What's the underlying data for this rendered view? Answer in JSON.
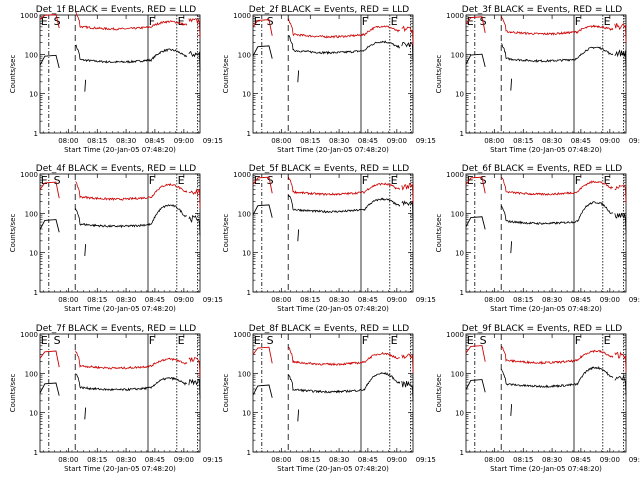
{
  "figure": {
    "xlabel": "Start Time (20-Jan-05 07:48:20)"
  },
  "chart_data": [
    {
      "type": "line",
      "title": "Det_1f BLACK = Events, RED = LLD",
      "ylabel": "Counts/sec",
      "yscale": "log",
      "ylim": [
        1,
        1000
      ],
      "yticks": [
        1,
        10,
        100,
        1000
      ],
      "xticks": [
        "08:00",
        "08:15",
        "08:30",
        "08:45",
        "09:00",
        "09:15"
      ],
      "markers": [
        "E",
        "S",
        "F",
        "E"
      ],
      "series": [
        {
          "name": "Events",
          "color": "#000000",
          "level": 75,
          "peak": 130
        },
        {
          "name": "LLD",
          "color": "#cc0000",
          "level": 520,
          "peak": 680
        }
      ]
    },
    {
      "type": "line",
      "title": "Det_2f BLACK = Events, RED = LLD",
      "ylabel": "Counts/sec",
      "yscale": "log",
      "ylim": [
        1,
        1000
      ],
      "yticks": [
        1,
        10,
        100,
        1000
      ],
      "xticks": [
        "08:00",
        "08:15",
        "08:30",
        "08:45",
        "09:00",
        "09:15"
      ],
      "markers": [
        "E",
        "S",
        "F",
        "E"
      ],
      "series": [
        {
          "name": "Events",
          "color": "#000000",
          "level": 130,
          "peak": 210
        },
        {
          "name": "LLD",
          "color": "#cc0000",
          "level": 330,
          "peak": 520
        }
      ]
    },
    {
      "type": "line",
      "title": "Det_3f BLACK = Events, RED = LLD",
      "ylabel": "Counts/sec",
      "yscale": "log",
      "ylim": [
        1,
        1000
      ],
      "yticks": [
        1,
        10,
        100,
        1000
      ],
      "xticks": [
        "08:00",
        "08:15",
        "08:30",
        "08:45",
        "09:00",
        "09:15"
      ],
      "markers": [
        "E",
        "S",
        "F",
        "E"
      ],
      "series": [
        {
          "name": "Events",
          "color": "#000000",
          "level": 80,
          "peak": 150
        },
        {
          "name": "LLD",
          "color": "#cc0000",
          "level": 390,
          "peak": 520
        }
      ]
    },
    {
      "type": "line",
      "title": "Det_4f BLACK = Events, RED = LLD",
      "ylabel": "Counts/sec",
      "yscale": "log",
      "ylim": [
        1,
        1000
      ],
      "yticks": [
        1,
        10,
        100,
        1000
      ],
      "xticks": [
        "08:00",
        "08:15",
        "08:30",
        "08:45",
        "09:00",
        "09:15"
      ],
      "markers": [
        "E",
        "S",
        "F",
        "E"
      ],
      "series": [
        {
          "name": "Events",
          "color": "#000000",
          "level": 55,
          "peak": 160
        },
        {
          "name": "LLD",
          "color": "#cc0000",
          "level": 270,
          "peak": 540
        }
      ]
    },
    {
      "type": "line",
      "title": "Det_5f BLACK = Events, RED = LLD",
      "ylabel": "Counts/sec",
      "yscale": "log",
      "ylim": [
        1,
        1000
      ],
      "yticks": [
        1,
        10,
        100,
        1000
      ],
      "xticks": [
        "08:00",
        "08:15",
        "08:30",
        "08:45",
        "09:00",
        "09:15"
      ],
      "markers": [
        "E",
        "S",
        "F",
        "E"
      ],
      "series": [
        {
          "name": "Events",
          "color": "#000000",
          "level": 130,
          "peak": 230
        },
        {
          "name": "LLD",
          "color": "#cc0000",
          "level": 360,
          "peak": 560
        }
      ]
    },
    {
      "type": "line",
      "title": "Det_6f BLACK = Events, RED = LLD",
      "ylabel": "Counts/sec",
      "yscale": "log",
      "ylim": [
        1,
        1000
      ],
      "yticks": [
        1,
        10,
        100,
        1000
      ],
      "xticks": [
        "08:00",
        "08:15",
        "08:30",
        "08:45",
        "09:00",
        "09:15"
      ],
      "markers": [
        "E",
        "S",
        "F",
        "E"
      ],
      "series": [
        {
          "name": "Events",
          "color": "#000000",
          "level": 65,
          "peak": 190
        },
        {
          "name": "LLD",
          "color": "#cc0000",
          "level": 360,
          "peak": 640
        }
      ]
    },
    {
      "type": "line",
      "title": "Det_7f BLACK = Events, RED = LLD",
      "ylabel": "Counts/sec",
      "yscale": "log",
      "ylim": [
        1,
        1000
      ],
      "yticks": [
        1,
        10,
        100,
        1000
      ],
      "xticks": [
        "08:00",
        "08:15",
        "08:30",
        "08:45",
        "09:00",
        "09:15"
      ],
      "markers": [
        "E",
        "S",
        "F",
        "E"
      ],
      "series": [
        {
          "name": "Events",
          "color": "#000000",
          "level": 45,
          "peak": 75
        },
        {
          "name": "LLD",
          "color": "#cc0000",
          "level": 160,
          "peak": 230
        }
      ]
    },
    {
      "type": "line",
      "title": "Det_8f BLACK = Events, RED = LLD",
      "ylabel": "Counts/sec",
      "yscale": "log",
      "ylim": [
        1,
        1000
      ],
      "yticks": [
        1,
        10,
        100,
        1000
      ],
      "xticks": [
        "08:00",
        "08:15",
        "08:30",
        "08:45",
        "09:00",
        "09:15"
      ],
      "markers": [
        "E",
        "S",
        "F",
        "E"
      ],
      "series": [
        {
          "name": "Events",
          "color": "#000000",
          "level": 40,
          "peak": 100
        },
        {
          "name": "LLD",
          "color": "#cc0000",
          "level": 200,
          "peak": 320
        }
      ]
    },
    {
      "type": "line",
      "title": "Det_9f BLACK = Events, RED = LLD",
      "ylabel": "Counts/sec",
      "yscale": "log",
      "ylim": [
        1,
        1000
      ],
      "yticks": [
        1,
        10,
        100,
        1000
      ],
      "xticks": [
        "08:00",
        "08:15",
        "08:30",
        "08:45",
        "09:00",
        "09:15"
      ],
      "markers": [
        "E",
        "S",
        "F",
        "E"
      ],
      "series": [
        {
          "name": "Events",
          "color": "#000000",
          "level": 55,
          "peak": 140
        },
        {
          "name": "LLD",
          "color": "#cc0000",
          "level": 220,
          "peak": 370
        }
      ]
    }
  ]
}
